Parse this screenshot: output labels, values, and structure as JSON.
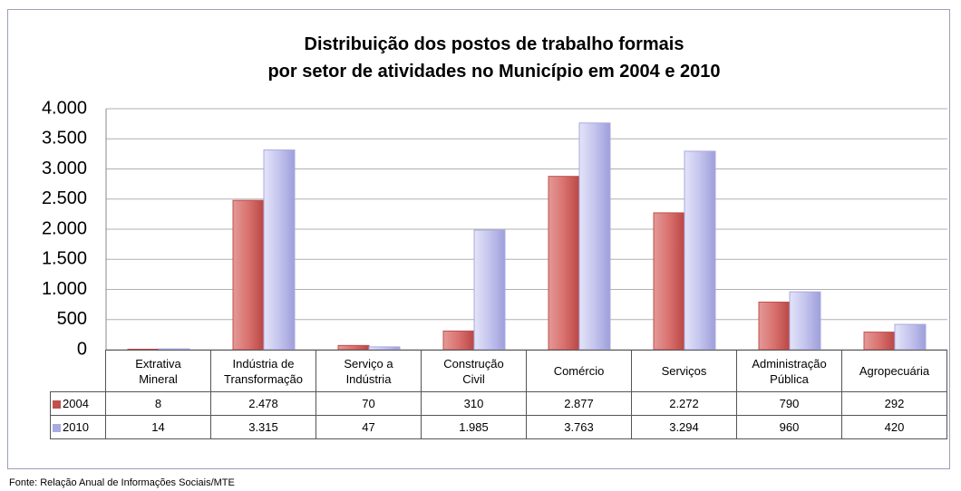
{
  "chart_data": {
    "type": "bar",
    "title": "Distribuição  dos postos de trabalho formais\npor setor de atividades no Município em 2004 e 2010",
    "categories": [
      "Extrativa\nMineral",
      "Indústria de\nTransformação",
      "Serviço a\nIndústria",
      "Construção\nCivil",
      "Comércio",
      "Serviços",
      "Administração\nPública",
      "Agropecuária"
    ],
    "series": [
      {
        "name": "2004",
        "color": "#c0504d",
        "values": [
          8,
          2478,
          70,
          310,
          2877,
          2272,
          790,
          292
        ],
        "value_labels": [
          "8",
          "2.478",
          "70",
          "310",
          "2.877",
          "2.272",
          "790",
          "292"
        ]
      },
      {
        "name": "2010",
        "color": "#a9a9e3",
        "values": [
          14,
          3315,
          47,
          1985,
          3763,
          3294,
          960,
          420
        ],
        "value_labels": [
          "14",
          "3.315",
          "47",
          "1.985",
          "3.763",
          "3.294",
          "960",
          "420"
        ]
      }
    ],
    "ylim": [
      0,
      4000
    ],
    "yticks": [
      0,
      500,
      {
        "value": 1000,
        "label": "1.000"
      },
      {
        "value": 1500,
        "label": "1.500"
      },
      {
        "value": 2000,
        "label": "2.000"
      },
      {
        "value": 2500,
        "label": "2.500"
      },
      {
        "value": 3000,
        "label": "3.000"
      },
      {
        "value": 3500,
        "label": "3.500"
      },
      {
        "value": 4000,
        "label": "4.000"
      }
    ],
    "grid": true,
    "source": "Fonte: Relação Anual de Informações Sociais/MTE"
  }
}
